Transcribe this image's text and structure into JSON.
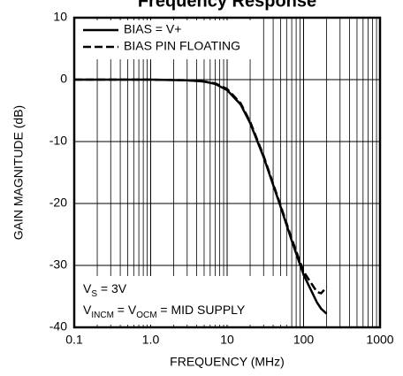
{
  "chart_data": {
    "type": "line",
    "title": "Frequency Response",
    "xlabel": "FREQUENCY (MHz)",
    "ylabel": "GAIN MAGNITUDE (dB)",
    "xscale": "log",
    "x": [
      0.1,
      1,
      3,
      5,
      7,
      10,
      15,
      20,
      30,
      50,
      70,
      100,
      150,
      170,
      200
    ],
    "series": [
      {
        "name": "BIAS = V+",
        "color": "#000000",
        "dash": "solid",
        "values": [
          0,
          0,
          -0.1,
          -0.3,
          -0.7,
          -1.7,
          -4,
          -7,
          -12.5,
          -20.5,
          -26,
          -31.5,
          -36,
          -37,
          -37.8
        ]
      },
      {
        "name": "BIAS PIN FLOATING",
        "color": "#000000",
        "dash": "dashed",
        "values": [
          0,
          0,
          -0.1,
          -0.3,
          -0.6,
          -1.5,
          -3.8,
          -6.8,
          -12.3,
          -20.3,
          -25.7,
          -31,
          -34.3,
          -34.5,
          -33.5
        ]
      }
    ],
    "xlim": [
      0.1,
      1000
    ],
    "ylim": [
      -40,
      10
    ],
    "xticks": [
      0.1,
      {
        "value": 1,
        "label": "1.0"
      },
      10,
      100,
      1000
    ],
    "xminorticks": [
      0.2,
      0.3,
      0.4,
      0.5,
      0.6,
      0.7,
      0.8,
      0.9,
      2,
      3,
      4,
      5,
      6,
      7,
      8,
      9,
      20,
      30,
      40,
      50,
      60,
      70,
      80,
      90,
      200,
      300,
      400,
      500,
      600,
      700,
      800,
      900
    ],
    "yticks": [
      -40,
      -30,
      -20,
      -10,
      0,
      10
    ],
    "grid": true,
    "legend": "upper left",
    "annotations": [
      [
        "V",
        "S",
        " = 3V"
      ],
      [
        "V",
        "INCM",
        " = V",
        "OCM",
        " = MID SUPPLY"
      ]
    ]
  }
}
